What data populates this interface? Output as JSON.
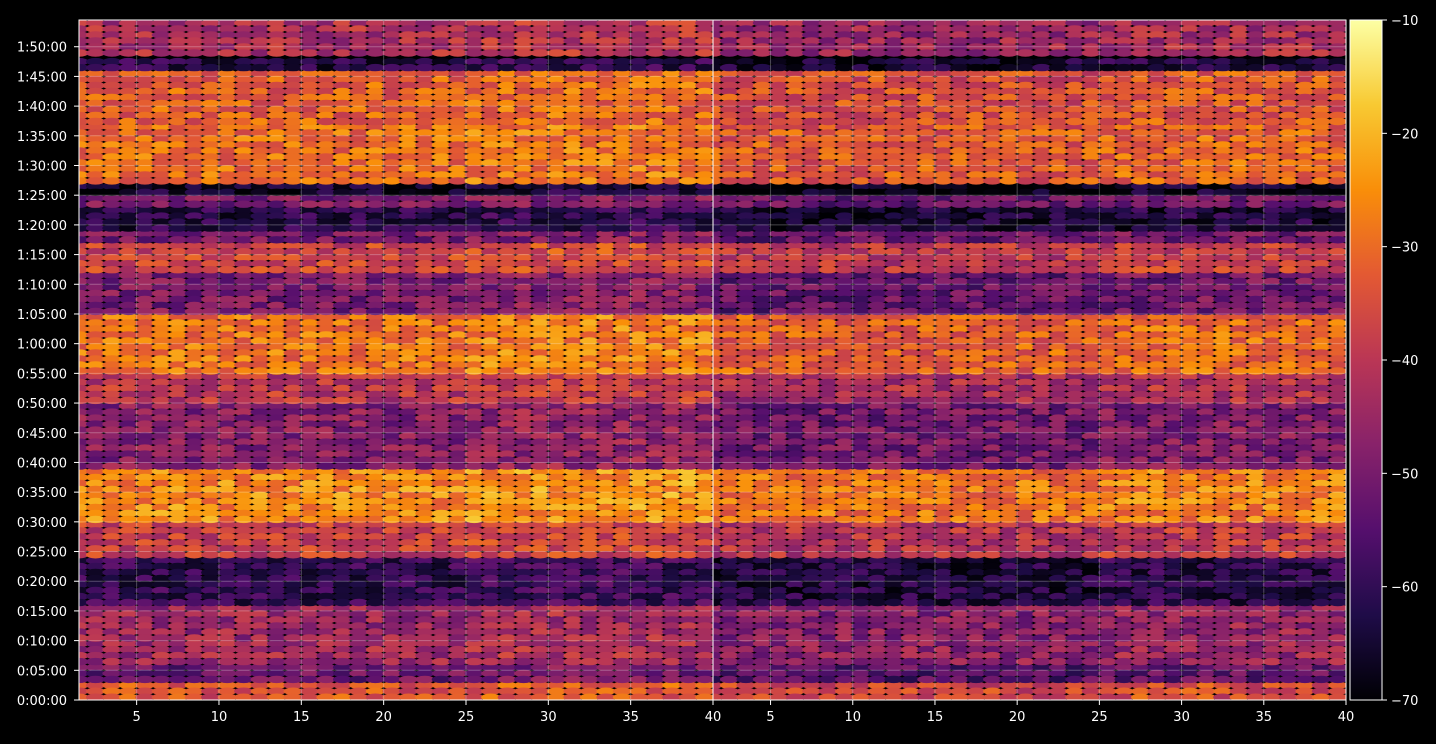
{
  "chart_data": {
    "type": "heatmap",
    "title": "",
    "xlabel": "",
    "ylabel": "",
    "panels": [
      {
        "xlim": [
          1.5,
          40
        ],
        "xticks": [
          5,
          10,
          15,
          20,
          25,
          30,
          35,
          40
        ],
        "ylim_seconds": [
          0,
          6870
        ],
        "yticks": [
          "0:00:00",
          "0:05:00",
          "0:10:00",
          "0:15:00",
          "0:20:00",
          "0:25:00",
          "0:30:00",
          "0:35:00",
          "0:40:00",
          "0:45:00",
          "0:50:00",
          "0:55:00",
          "1:00:00",
          "1:05:00",
          "1:10:00",
          "1:15:00",
          "1:20:00",
          "1:25:00",
          "1:30:00",
          "1:35:00",
          "1:40:00",
          "1:45:00",
          "1:50:00"
        ]
      },
      {
        "xlim": [
          1.5,
          40
        ],
        "xticks": [
          5,
          10,
          15,
          20,
          25,
          30,
          35,
          40
        ],
        "ylim_seconds": [
          0,
          6870
        ],
        "yticks": []
      }
    ],
    "colormap": "inferno",
    "colorbar": {
      "min": -70,
      "max": -10,
      "ticks": [
        "−10",
        "−20",
        "−30",
        "−40",
        "−50",
        "−60",
        "−70"
      ]
    },
    "grid": true,
    "row_profile": [
      {
        "start": "0:00:00",
        "end": "0:03:00",
        "level": -34
      },
      {
        "start": "0:03:00",
        "end": "0:06:00",
        "level": -52
      },
      {
        "start": "0:06:00",
        "end": "0:10:00",
        "level": -44
      },
      {
        "start": "0:10:00",
        "end": "0:16:00",
        "level": -45
      },
      {
        "start": "0:16:00",
        "end": "0:24:00",
        "level": -60
      },
      {
        "start": "0:24:00",
        "end": "0:30:00",
        "level": -38
      },
      {
        "start": "0:30:00",
        "end": "0:39:00",
        "level": -26
      },
      {
        "start": "0:39:00",
        "end": "0:50:00",
        "level": -48
      },
      {
        "start": "0:50:00",
        "end": "0:55:00",
        "level": -40
      },
      {
        "start": "0:55:00",
        "end": "1:05:00",
        "level": -29
      },
      {
        "start": "1:05:00",
        "end": "1:12:00",
        "level": -50
      },
      {
        "start": "1:12:00",
        "end": "1:17:00",
        "level": -37
      },
      {
        "start": "1:17:00",
        "end": "1:19:00",
        "level": -50
      },
      {
        "start": "1:19:00",
        "end": "1:23:00",
        "level": -62
      },
      {
        "start": "1:23:00",
        "end": "1:25:00",
        "level": -50
      },
      {
        "start": "1:25:00",
        "end": "1:27:00",
        "level": -66
      },
      {
        "start": "1:27:00",
        "end": "1:37:00",
        "level": -30
      },
      {
        "start": "1:37:00",
        "end": "1:46:00",
        "level": -32
      },
      {
        "start": "1:46:00",
        "end": "1:48:00",
        "level": -62
      },
      {
        "start": "1:48:00",
        "end": "1:54:30",
        "level": -42
      }
    ]
  }
}
